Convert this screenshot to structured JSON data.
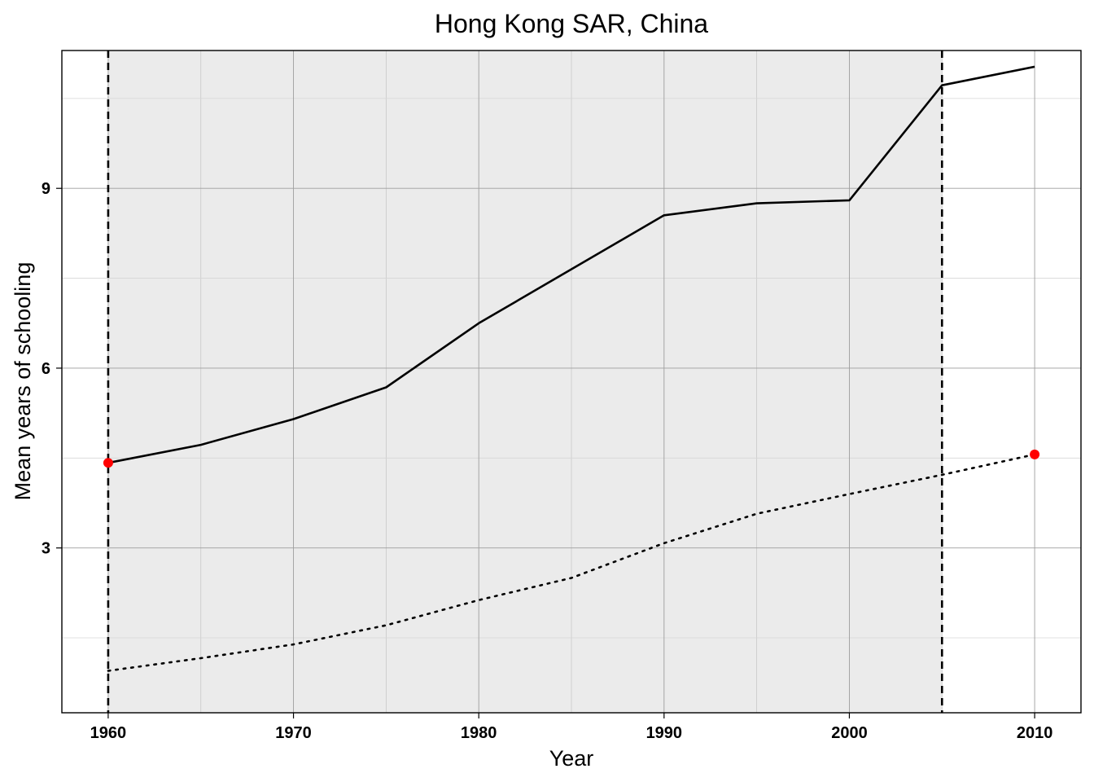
{
  "chart_data": {
    "type": "line",
    "title": "Hong Kong SAR, China",
    "xlabel": "Year",
    "ylabel": "Mean years of schooling",
    "xlim": [
      1957.5,
      2012.5
    ],
    "ylim": [
      0.25,
      11.3
    ],
    "x_ticks": [
      1960,
      1970,
      1980,
      1990,
      2000,
      2010
    ],
    "x_minor_ticks": [
      1965,
      1975,
      1985,
      1995,
      2005
    ],
    "y_ticks": [
      3,
      6,
      9
    ],
    "y_minor_ticks": [
      1.5,
      4.5,
      7.5,
      10.5
    ],
    "grid": true,
    "shaded_region": {
      "x": [
        1960,
        2005
      ],
      "color": "#ebebeb"
    },
    "vlines": [
      {
        "x": 1960,
        "style": "dashed"
      },
      {
        "x": 2005,
        "style": "dashed"
      }
    ],
    "series": [
      {
        "style": "solid",
        "color": "#000000",
        "x": [
          1960,
          1965,
          1970,
          1975,
          1980,
          1985,
          1990,
          1995,
          2000,
          2005,
          2010
        ],
        "y": [
          4.42,
          4.72,
          5.15,
          5.68,
          6.75,
          7.65,
          8.55,
          8.75,
          8.8,
          10.72,
          11.03
        ]
      },
      {
        "style": "dotted",
        "color": "#000000",
        "x": [
          1960,
          1965,
          1970,
          1975,
          1980,
          1985,
          1990,
          1995,
          2000,
          2005,
          2010
        ],
        "y": [
          0.95,
          1.16,
          1.39,
          1.71,
          2.13,
          2.5,
          3.08,
          3.57,
          3.9,
          4.22,
          4.56
        ]
      }
    ],
    "highlight_points": [
      {
        "x": 1960,
        "y": 4.42,
        "color": "#ff0000"
      },
      {
        "x": 2010,
        "y": 4.56,
        "color": "#ff0000"
      }
    ]
  }
}
